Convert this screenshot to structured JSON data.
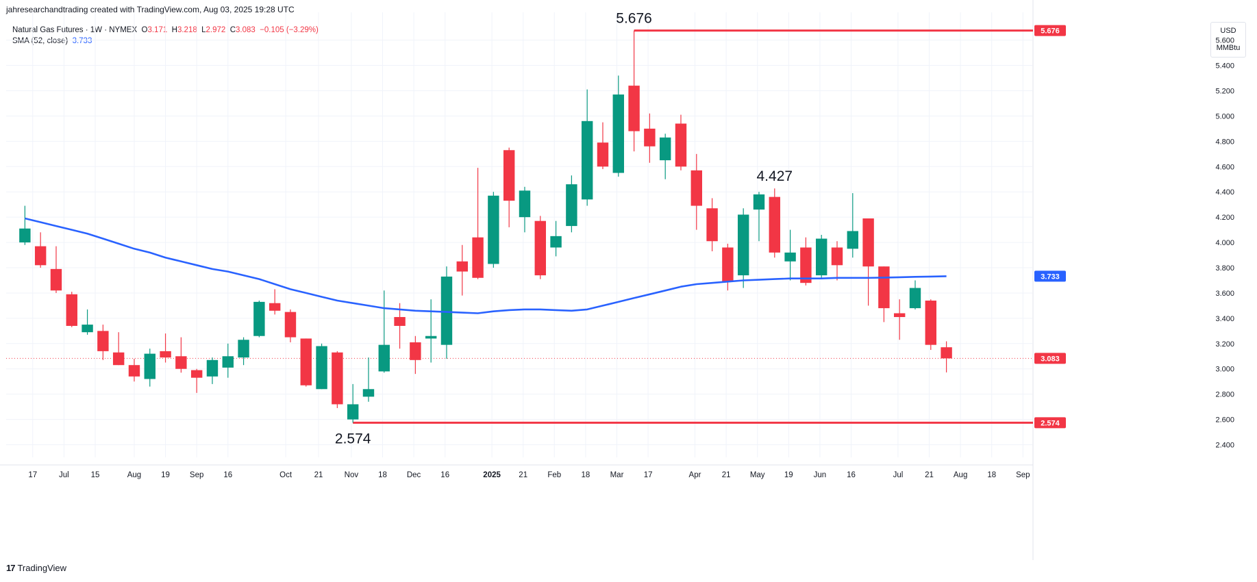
{
  "header": {
    "attribution": "jahresearchandtrading created with TradingView.com, Aug 03, 2025 19:28 UTC"
  },
  "legend": {
    "symbol": "Natural Gas Futures · 1W · NYMEX",
    "open_label": "O",
    "open": "3.171",
    "high_label": "H",
    "high": "3.218",
    "low_label": "L",
    "low": "2.972",
    "close_label": "C",
    "close": "3.083",
    "change": "−0.105 (−3.29%)",
    "sma_label": "SMA (52, close)",
    "sma_value": "3.733"
  },
  "units": {
    "currency": "USD",
    "unit": "MMBtu"
  },
  "footer": {
    "brand": "TradingView",
    "logo_text": "17"
  },
  "colors": {
    "up": "#089981",
    "down": "#f23645",
    "sma": "#2962ff",
    "grid": "#f0f3fa",
    "level": "#f23645"
  },
  "chart_data": {
    "type": "candlestick",
    "interval": "1W",
    "ylim": [
      2.3,
      5.82
    ],
    "yticks": [
      "2.400",
      "2.600",
      "2.800",
      "3.000",
      "3.200",
      "3.400",
      "3.600",
      "3.800",
      "4.000",
      "4.200",
      "4.400",
      "4.600",
      "4.800",
      "5.000",
      "5.200",
      "5.400",
      "5.600"
    ],
    "xlim": [
      -1.2,
      64.5
    ],
    "xticks": [
      {
        "i": 0.5,
        "label": "17"
      },
      {
        "i": 2.5,
        "label": "Jul"
      },
      {
        "i": 4.5,
        "label": "15"
      },
      {
        "i": 7,
        "label": "Aug"
      },
      {
        "i": 9,
        "label": "19"
      },
      {
        "i": 11,
        "label": "Sep"
      },
      {
        "i": 13,
        "label": "16"
      },
      {
        "i": 16.7,
        "label": "Oct"
      },
      {
        "i": 18.8,
        "label": "21"
      },
      {
        "i": 20.9,
        "label": "Nov"
      },
      {
        "i": 22.9,
        "label": "18"
      },
      {
        "i": 24.9,
        "label": "Dec"
      },
      {
        "i": 26.9,
        "label": "16"
      },
      {
        "i": 29.9,
        "label": "2025"
      },
      {
        "i": 31.9,
        "label": "21"
      },
      {
        "i": 33.9,
        "label": "Feb"
      },
      {
        "i": 35.9,
        "label": "18"
      },
      {
        "i": 37.9,
        "label": "Mar"
      },
      {
        "i": 39.9,
        "label": "17"
      },
      {
        "i": 42.9,
        "label": "Apr"
      },
      {
        "i": 44.9,
        "label": "21"
      },
      {
        "i": 46.9,
        "label": "May"
      },
      {
        "i": 48.9,
        "label": "19"
      },
      {
        "i": 50.9,
        "label": "Jun"
      },
      {
        "i": 52.9,
        "label": "16"
      },
      {
        "i": 55.9,
        "label": "Jul"
      },
      {
        "i": 57.9,
        "label": "21"
      },
      {
        "i": 59.9,
        "label": "Aug"
      },
      {
        "i": 61.9,
        "label": "18"
      },
      {
        "i": 63.9,
        "label": "Sep"
      }
    ],
    "candles": [
      {
        "o": 4.0,
        "h": 4.29,
        "l": 3.98,
        "c": 4.11
      },
      {
        "o": 3.97,
        "h": 4.08,
        "l": 3.8,
        "c": 3.82
      },
      {
        "o": 3.79,
        "h": 3.97,
        "l": 3.6,
        "c": 3.62
      },
      {
        "o": 3.59,
        "h": 3.61,
        "l": 3.33,
        "c": 3.34
      },
      {
        "o": 3.29,
        "h": 3.47,
        "l": 3.27,
        "c": 3.35
      },
      {
        "o": 3.3,
        "h": 3.35,
        "l": 3.07,
        "c": 3.14
      },
      {
        "o": 3.13,
        "h": 3.29,
        "l": 3.03,
        "c": 3.03
      },
      {
        "o": 3.03,
        "h": 3.08,
        "l": 2.9,
        "c": 2.94
      },
      {
        "o": 2.92,
        "h": 3.16,
        "l": 2.86,
        "c": 3.12
      },
      {
        "o": 3.14,
        "h": 3.28,
        "l": 3.05,
        "c": 3.09
      },
      {
        "o": 3.1,
        "h": 3.25,
        "l": 2.97,
        "c": 3.0
      },
      {
        "o": 2.99,
        "h": 3.0,
        "l": 2.81,
        "c": 2.93
      },
      {
        "o": 2.94,
        "h": 3.09,
        "l": 2.88,
        "c": 3.07
      },
      {
        "o": 3.01,
        "h": 3.2,
        "l": 2.93,
        "c": 3.1
      },
      {
        "o": 3.09,
        "h": 3.25,
        "l": 3.03,
        "c": 3.23
      },
      {
        "o": 3.26,
        "h": 3.54,
        "l": 3.25,
        "c": 3.53
      },
      {
        "o": 3.52,
        "h": 3.63,
        "l": 3.43,
        "c": 3.46
      },
      {
        "o": 3.45,
        "h": 3.47,
        "l": 3.21,
        "c": 3.25
      },
      {
        "o": 3.24,
        "h": 3.24,
        "l": 2.86,
        "c": 2.87
      },
      {
        "o": 2.84,
        "h": 3.2,
        "l": 2.84,
        "c": 3.18
      },
      {
        "o": 3.13,
        "h": 3.14,
        "l": 2.69,
        "c": 2.72
      },
      {
        "o": 2.6,
        "h": 2.88,
        "l": 2.574,
        "c": 2.72
      },
      {
        "o": 2.78,
        "h": 3.09,
        "l": 2.74,
        "c": 2.84
      },
      {
        "o": 2.98,
        "h": 3.62,
        "l": 2.97,
        "c": 3.19
      },
      {
        "o": 3.41,
        "h": 3.52,
        "l": 3.16,
        "c": 3.34
      },
      {
        "o": 3.21,
        "h": 3.26,
        "l": 2.96,
        "c": 3.07
      },
      {
        "o": 3.24,
        "h": 3.55,
        "l": 3.05,
        "c": 3.26
      },
      {
        "o": 3.19,
        "h": 3.81,
        "l": 3.08,
        "c": 3.73
      },
      {
        "o": 3.85,
        "h": 3.98,
        "l": 3.58,
        "c": 3.77
      },
      {
        "o": 4.04,
        "h": 4.59,
        "l": 3.71,
        "c": 3.72
      },
      {
        "o": 3.83,
        "h": 4.4,
        "l": 3.8,
        "c": 4.37
      },
      {
        "o": 4.73,
        "h": 4.75,
        "l": 4.12,
        "c": 4.33
      },
      {
        "o": 4.2,
        "h": 4.44,
        "l": 4.08,
        "c": 4.41
      },
      {
        "o": 4.17,
        "h": 4.21,
        "l": 3.71,
        "c": 3.74
      },
      {
        "o": 3.96,
        "h": 4.17,
        "l": 3.89,
        "c": 4.05
      },
      {
        "o": 4.13,
        "h": 4.53,
        "l": 4.08,
        "c": 4.46
      },
      {
        "o": 4.34,
        "h": 5.21,
        "l": 4.29,
        "c": 4.96
      },
      {
        "o": 4.79,
        "h": 4.95,
        "l": 4.58,
        "c": 4.6
      },
      {
        "o": 4.55,
        "h": 5.32,
        "l": 4.52,
        "c": 5.17
      },
      {
        "o": 5.24,
        "h": 5.676,
        "l": 4.72,
        "c": 4.88
      },
      {
        "o": 4.9,
        "h": 5.02,
        "l": 4.63,
        "c": 4.76
      },
      {
        "o": 4.65,
        "h": 4.86,
        "l": 4.5,
        "c": 4.83
      },
      {
        "o": 4.94,
        "h": 5.01,
        "l": 4.57,
        "c": 4.6
      },
      {
        "o": 4.57,
        "h": 4.7,
        "l": 4.1,
        "c": 4.29
      },
      {
        "o": 4.27,
        "h": 4.35,
        "l": 3.93,
        "c": 4.01
      },
      {
        "o": 3.96,
        "h": 3.99,
        "l": 3.62,
        "c": 3.69
      },
      {
        "o": 3.74,
        "h": 4.27,
        "l": 3.64,
        "c": 4.22
      },
      {
        "o": 4.26,
        "h": 4.4,
        "l": 4.01,
        "c": 4.38
      },
      {
        "o": 4.36,
        "h": 4.427,
        "l": 3.88,
        "c": 3.92
      },
      {
        "o": 3.85,
        "h": 4.1,
        "l": 3.7,
        "c": 3.92
      },
      {
        "o": 3.96,
        "h": 4.04,
        "l": 3.66,
        "c": 3.68
      },
      {
        "o": 3.74,
        "h": 4.06,
        "l": 3.71,
        "c": 4.03
      },
      {
        "o": 3.96,
        "h": 4.01,
        "l": 3.7,
        "c": 3.82
      },
      {
        "o": 3.95,
        "h": 4.39,
        "l": 3.88,
        "c": 4.09
      },
      {
        "o": 4.19,
        "h": 4.19,
        "l": 3.5,
        "c": 3.81
      },
      {
        "o": 3.81,
        "h": 3.81,
        "l": 3.37,
        "c": 3.48
      },
      {
        "o": 3.44,
        "h": 3.55,
        "l": 3.23,
        "c": 3.41
      },
      {
        "o": 3.48,
        "h": 3.7,
        "l": 3.47,
        "c": 3.64
      },
      {
        "o": 3.54,
        "h": 3.55,
        "l": 3.15,
        "c": 3.19
      },
      {
        "o": 3.171,
        "h": 3.218,
        "l": 2.972,
        "c": 3.083
      }
    ],
    "sma": [
      4.19,
      4.16,
      4.13,
      4.1,
      4.07,
      4.03,
      3.99,
      3.95,
      3.92,
      3.88,
      3.85,
      3.82,
      3.79,
      3.77,
      3.74,
      3.71,
      3.67,
      3.63,
      3.6,
      3.57,
      3.54,
      3.52,
      3.5,
      3.48,
      3.47,
      3.46,
      3.455,
      3.45,
      3.445,
      3.44,
      3.455,
      3.465,
      3.47,
      3.47,
      3.465,
      3.46,
      3.47,
      3.5,
      3.53,
      3.56,
      3.59,
      3.62,
      3.65,
      3.67,
      3.68,
      3.69,
      3.7,
      3.705,
      3.71,
      3.715,
      3.715,
      3.715,
      3.72,
      3.72,
      3.72,
      3.722,
      3.725,
      3.728,
      3.73,
      3.733
    ],
    "levels": [
      {
        "value": 5.676,
        "label": "5.676",
        "from": 39
      },
      {
        "value": 2.574,
        "label": "2.574",
        "from": 21
      }
    ],
    "annotations": [
      {
        "i": 39,
        "value": 5.676,
        "text": "5.676",
        "pos": "above"
      },
      {
        "i": 48,
        "value": 4.427,
        "text": "4.427",
        "pos": "above"
      },
      {
        "i": 21,
        "value": 2.574,
        "text": "2.574",
        "pos": "below"
      }
    ],
    "last_price": 3.083,
    "last_price_label": "3.083",
    "sma_last_label": "3.733"
  }
}
